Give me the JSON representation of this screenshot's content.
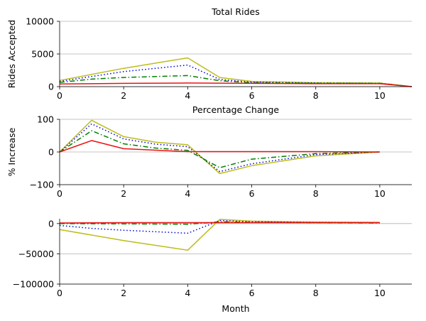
{
  "chart_data": [
    {
      "type": "line",
      "title": "Total Rides",
      "xlabel": "",
      "ylabel": "Rides Accepted",
      "xlim": [
        0,
        11
      ],
      "ylim": [
        0,
        10000
      ],
      "xticks": [
        0,
        2,
        4,
        6,
        8,
        10
      ],
      "yticks": [
        0,
        5000,
        10000
      ],
      "grid": "horizontal",
      "series": [
        {
          "style": "solid",
          "color": "#bdbd1a",
          "x": [
            0,
            2,
            4,
            5,
            6,
            8,
            10,
            11
          ],
          "y": [
            950,
            2800,
            4400,
            1400,
            800,
            600,
            550,
            0
          ]
        },
        {
          "style": "dotted",
          "color": "#0000dd",
          "x": [
            0,
            2,
            4,
            5,
            6,
            8,
            10,
            11
          ],
          "y": [
            800,
            2300,
            3300,
            1100,
            700,
            550,
            500,
            0
          ]
        },
        {
          "style": "dashdot",
          "color": "#008000",
          "x": [
            0,
            1,
            2,
            4,
            5,
            6,
            8,
            10,
            11
          ],
          "y": [
            650,
            1150,
            1400,
            1700,
            900,
            600,
            500,
            500,
            0
          ]
        },
        {
          "style": "solid",
          "color": "#ee1111",
          "x": [
            0,
            2,
            4,
            6,
            8,
            10,
            11
          ],
          "y": [
            400,
            500,
            550,
            500,
            450,
            450,
            0
          ]
        }
      ]
    },
    {
      "type": "line",
      "title": "Percentage Change",
      "xlabel": "",
      "ylabel": "% Increase",
      "xlim": [
        0,
        11
      ],
      "ylim": [
        -100,
        100
      ],
      "xticks": [
        0,
        2,
        4,
        6,
        8,
        10
      ],
      "yticks": [
        -100,
        0,
        100
      ],
      "grid": "horizontal",
      "series": [
        {
          "style": "solid",
          "color": "#bdbd1a",
          "x": [
            0,
            1,
            2,
            3,
            4,
            5,
            6,
            8,
            10
          ],
          "y": [
            0,
            97,
            47,
            30,
            22,
            -66,
            -42,
            -12,
            0
          ]
        },
        {
          "style": "dotted",
          "color": "#0000dd",
          "x": [
            0,
            1,
            2,
            3,
            4,
            5,
            6,
            8,
            10
          ],
          "y": [
            0,
            86,
            40,
            24,
            16,
            -60,
            -36,
            -8,
            0
          ]
        },
        {
          "style": "dashdot",
          "color": "#008000",
          "x": [
            0,
            1,
            2,
            3,
            4,
            5,
            6,
            8,
            10
          ],
          "y": [
            0,
            65,
            25,
            12,
            5,
            -48,
            -22,
            -5,
            0
          ]
        },
        {
          "style": "solid",
          "color": "#ee1111",
          "x": [
            0,
            1,
            2,
            4,
            6,
            8,
            10
          ],
          "y": [
            0,
            35,
            10,
            1,
            1,
            1,
            0
          ]
        }
      ]
    },
    {
      "type": "line",
      "title": "",
      "xlabel": "Month",
      "ylabel": "",
      "xlim": [
        0,
        11
      ],
      "ylim": [
        -100000,
        8000
      ],
      "xticks": [
        0,
        2,
        4,
        6,
        8,
        10
      ],
      "yticks": [
        -100000,
        -50000,
        0
      ],
      "grid": "horizontal",
      "series": [
        {
          "style": "solid",
          "color": "#bdbd1a",
          "x": [
            0,
            2,
            4,
            5,
            6,
            8,
            10
          ],
          "y": [
            -10000,
            -28000,
            -44000,
            7000,
            4000,
            2500,
            2000
          ]
        },
        {
          "style": "dotted",
          "color": "#0000dd",
          "x": [
            0,
            1,
            2,
            4,
            5,
            6,
            8,
            10
          ],
          "y": [
            -3000,
            -8000,
            -11000,
            -16000,
            5000,
            3000,
            2000,
            1500
          ]
        },
        {
          "style": "dashdot",
          "color": "#008000",
          "x": [
            0,
            2,
            4,
            5,
            6,
            8,
            10
          ],
          "y": [
            0,
            -500,
            -1000,
            3000,
            2000,
            1500,
            1000
          ]
        },
        {
          "style": "solid",
          "color": "#ee1111",
          "x": [
            0,
            2,
            4,
            6,
            8,
            10
          ],
          "y": [
            1000,
            1500,
            1500,
            1500,
            1500,
            1500
          ]
        }
      ]
    }
  ]
}
